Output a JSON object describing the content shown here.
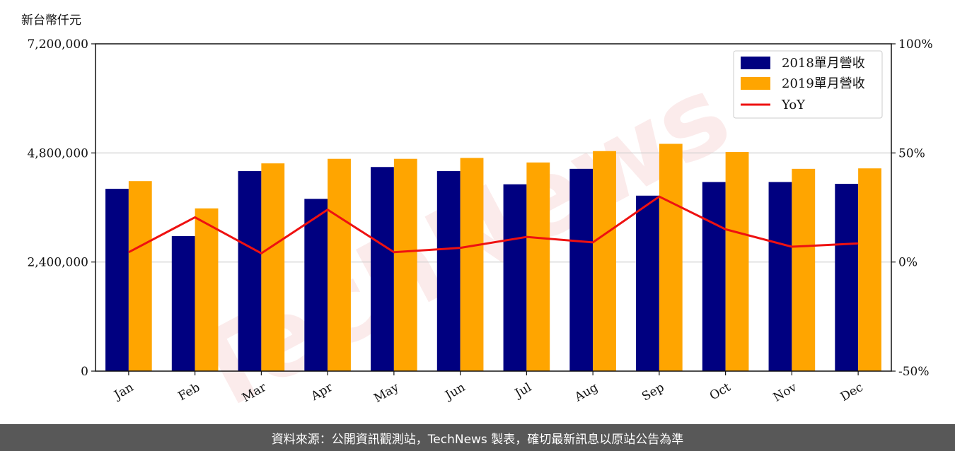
{
  "chart_data": {
    "type": "bar",
    "unit_label": "新台幣仟元",
    "categories": [
      "Jan",
      "Feb",
      "Mar",
      "Apr",
      "May",
      "Jun",
      "Jul",
      "Aug",
      "Sep",
      "Oct",
      "Nov",
      "Dec"
    ],
    "series": [
      {
        "name": "2018單月營收",
        "color": "#000080",
        "values": [
          4010000,
          2970000,
          4400000,
          3790000,
          4490000,
          4400000,
          4110000,
          4450000,
          3860000,
          4160000,
          4160000,
          4120000
        ]
      },
      {
        "name": "2019單月營收",
        "color": "#ffa500",
        "values": [
          4180000,
          3580000,
          4570000,
          4670000,
          4670000,
          4690000,
          4590000,
          4840000,
          5000000,
          4820000,
          4450000,
          4460000
        ]
      }
    ],
    "line_series": {
      "name": "YoY",
      "color": "#ee1111",
      "axis": "right",
      "values": [
        4.5,
        20.5,
        4,
        24,
        4.5,
        6.5,
        11.5,
        9,
        30,
        15,
        7,
        8.5
      ]
    },
    "left_axis": {
      "ylim": [
        0,
        7200000
      ],
      "ticks": [
        "0",
        "2,400,000",
        "4,800,000",
        "7,200,000"
      ],
      "tick_values": [
        0,
        2400000,
        4800000,
        7200000
      ]
    },
    "right_axis": {
      "ylim": [
        -50,
        100
      ],
      "ticks": [
        "-50%",
        "0%",
        "50%",
        "100%"
      ],
      "tick_values": [
        -50,
        0,
        50,
        100
      ]
    },
    "grid": "horizontal",
    "legend_position": "top-right"
  },
  "watermark": "TechNews",
  "footer": {
    "text": "資料來源：公開資訊觀測站，TechNews 製表，確切最新訊息以原站公告為準"
  }
}
